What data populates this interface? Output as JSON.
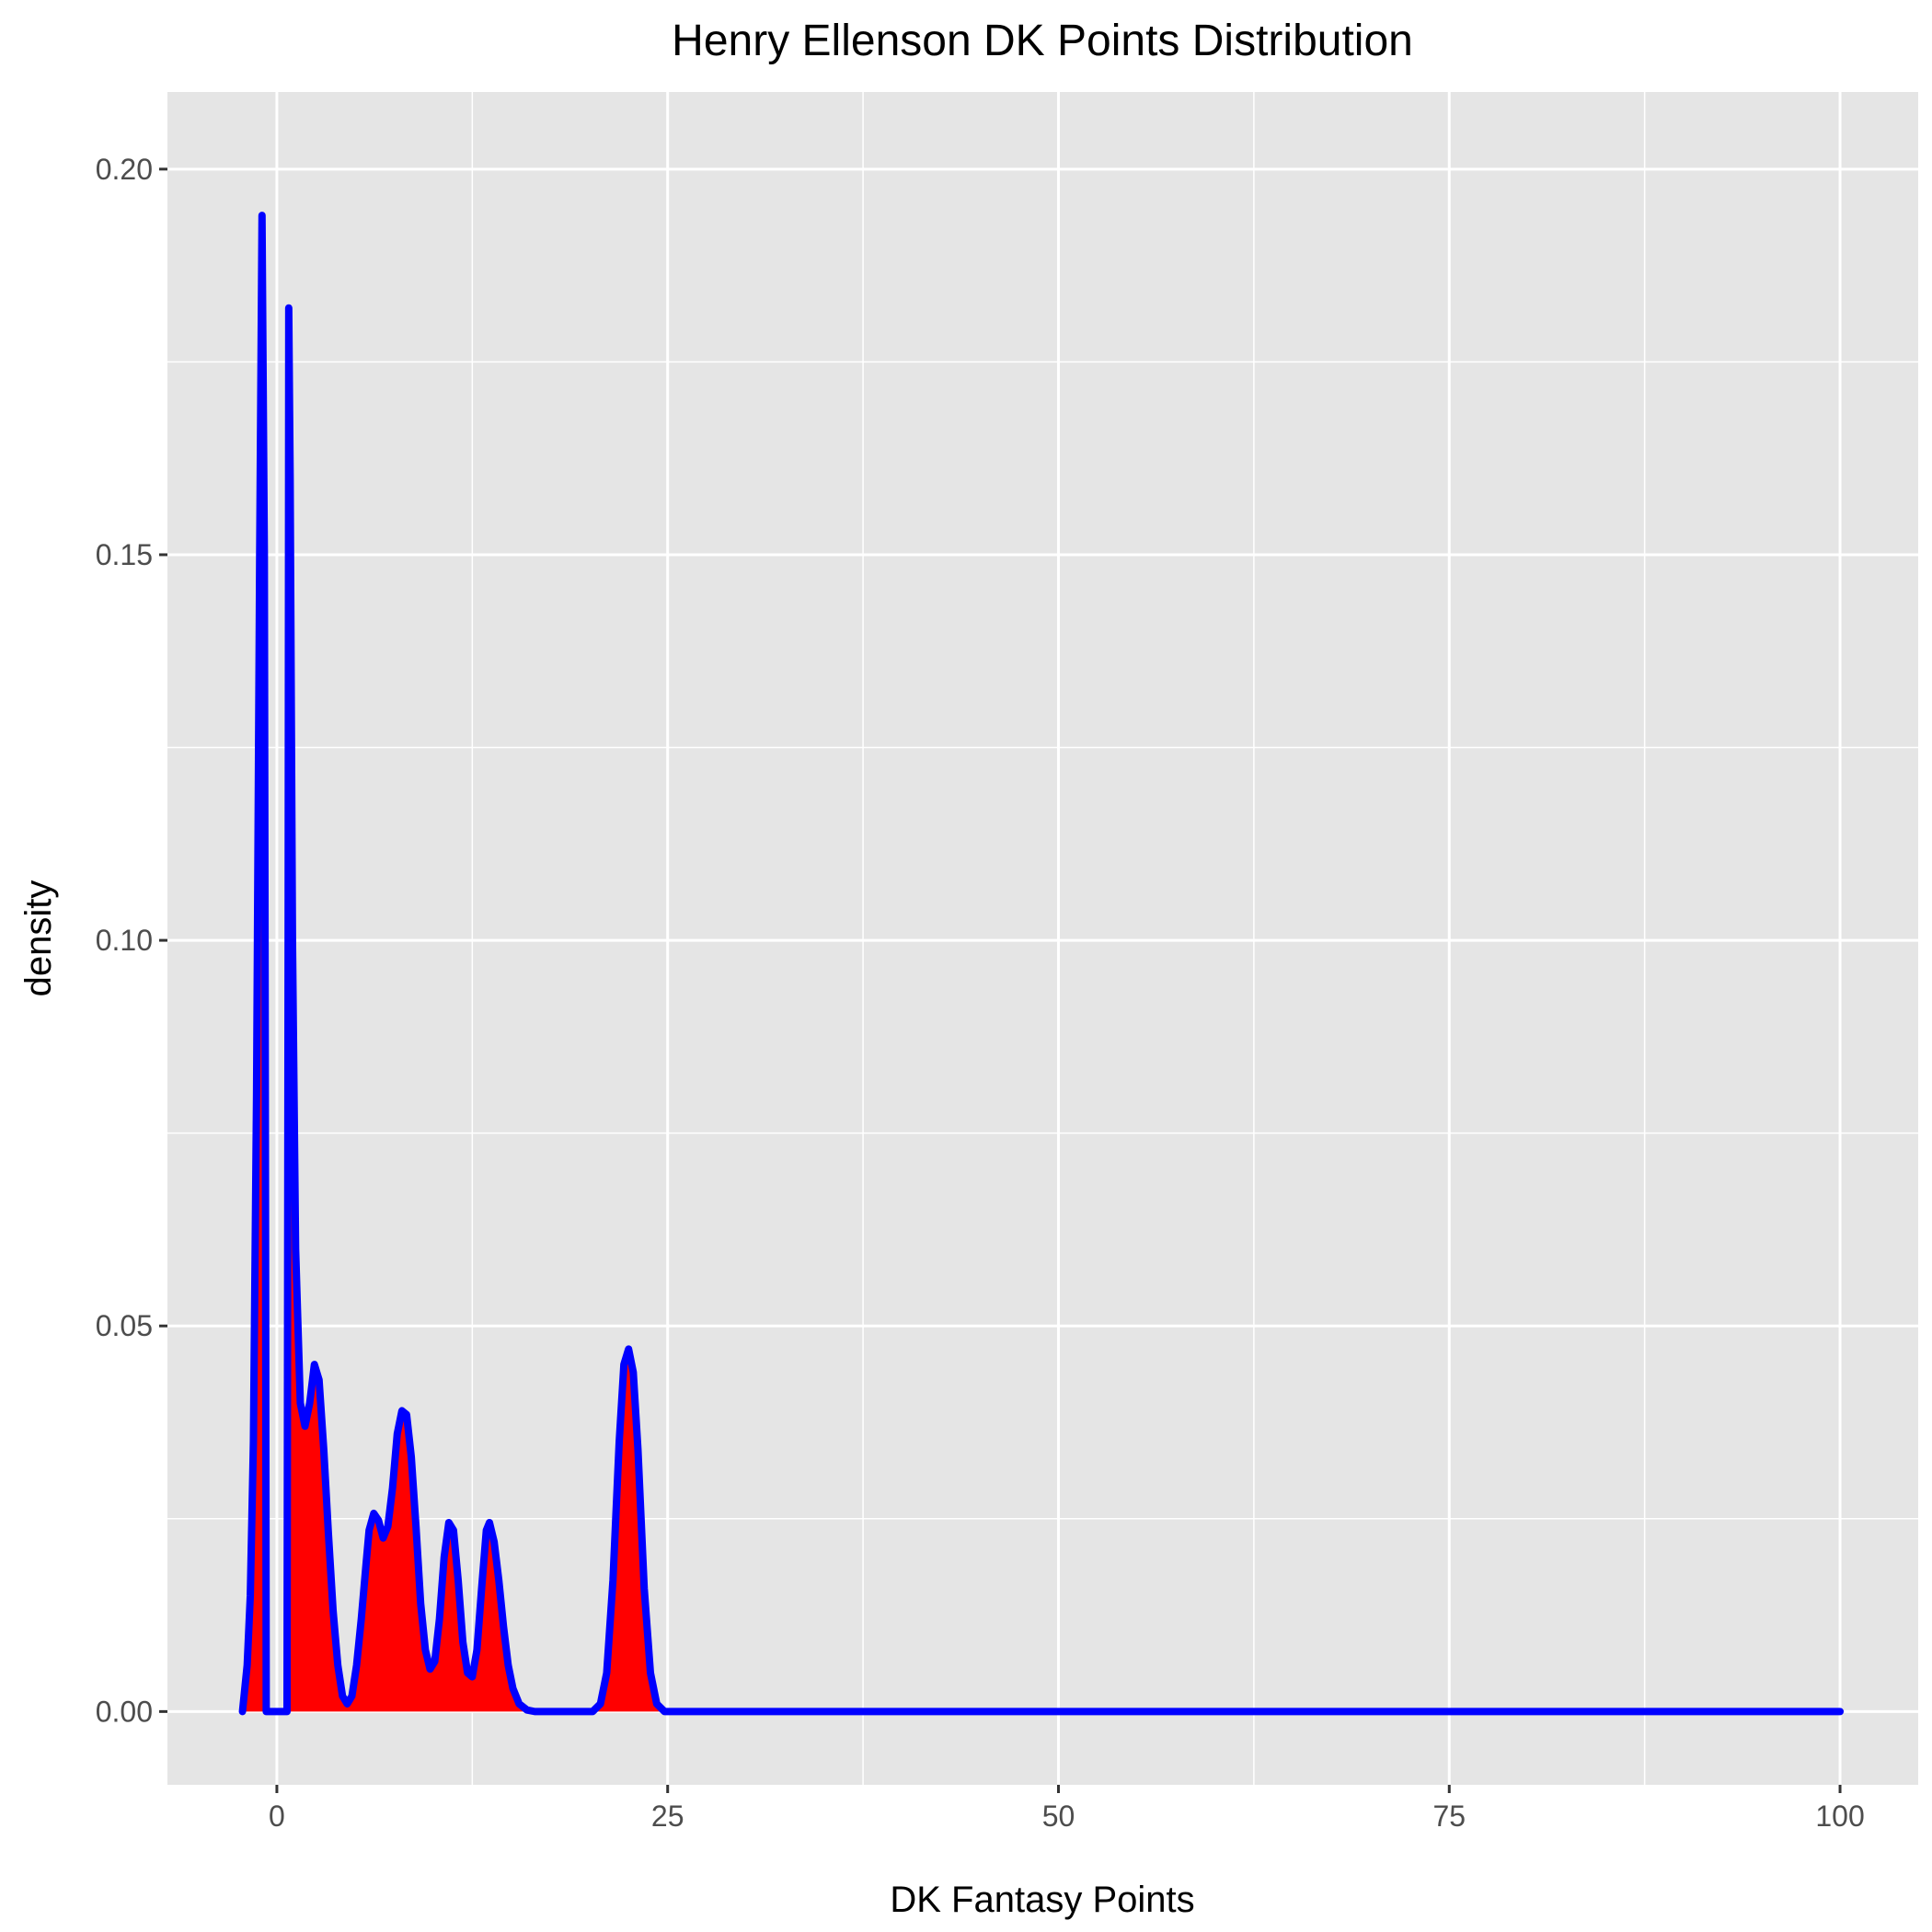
{
  "chart_data": {
    "type": "area",
    "title": "Henry Ellenson DK Points Distribution",
    "xlabel": "DK Fantasy Points",
    "ylabel": "density",
    "xlim": [
      -7,
      105
    ],
    "ylim": [
      -0.0095,
      0.21
    ],
    "x_ticks": [
      0,
      25,
      50,
      75,
      100
    ],
    "x_tick_labels": [
      "0",
      "25",
      "50",
      "75",
      "100"
    ],
    "y_ticks": [
      0.0,
      0.05,
      0.1,
      0.15,
      0.2
    ],
    "y_tick_labels": [
      "0.00",
      "0.05",
      "0.10",
      "0.15",
      "0.20"
    ],
    "grid": true,
    "series": [
      {
        "name": "density",
        "points": [
          [
            -2.2,
            0.0
          ],
          [
            -2.1,
            0.002
          ],
          [
            -1.9,
            0.006
          ],
          [
            -1.7,
            0.015
          ],
          [
            -1.5,
            0.035
          ],
          [
            -1.3,
            0.08
          ],
          [
            -1.1,
            0.15
          ],
          [
            -0.95,
            0.194
          ],
          [
            -0.8,
            0.15
          ],
          [
            -0.72,
            0.06
          ],
          [
            -0.68,
            0.0
          ],
          [
            0.65,
            0.0
          ],
          [
            0.72,
            0.1
          ],
          [
            0.76,
            0.182
          ],
          [
            0.85,
            0.16
          ],
          [
            1.0,
            0.1
          ],
          [
            1.2,
            0.06
          ],
          [
            1.5,
            0.04
          ],
          [
            1.8,
            0.037
          ],
          [
            2.1,
            0.04
          ],
          [
            2.4,
            0.045
          ],
          [
            2.7,
            0.043
          ],
          [
            3.0,
            0.034
          ],
          [
            3.3,
            0.023
          ],
          [
            3.6,
            0.013
          ],
          [
            3.9,
            0.006
          ],
          [
            4.2,
            0.002
          ],
          [
            4.5,
            0.001
          ],
          [
            4.8,
            0.002
          ],
          [
            5.1,
            0.006
          ],
          [
            5.4,
            0.012
          ],
          [
            5.7,
            0.019
          ],
          [
            5.9,
            0.0235
          ],
          [
            6.2,
            0.0257
          ],
          [
            6.5,
            0.0248
          ],
          [
            6.8,
            0.0225
          ],
          [
            7.1,
            0.024
          ],
          [
            7.4,
            0.029
          ],
          [
            7.7,
            0.036
          ],
          [
            8.0,
            0.039
          ],
          [
            8.3,
            0.0385
          ],
          [
            8.6,
            0.033
          ],
          [
            8.9,
            0.024
          ],
          [
            9.2,
            0.014
          ],
          [
            9.5,
            0.008
          ],
          [
            9.8,
            0.0055
          ],
          [
            10.1,
            0.0065
          ],
          [
            10.4,
            0.012
          ],
          [
            10.7,
            0.02
          ],
          [
            11.0,
            0.0245
          ],
          [
            11.3,
            0.0235
          ],
          [
            11.6,
            0.017
          ],
          [
            11.9,
            0.009
          ],
          [
            12.2,
            0.005
          ],
          [
            12.5,
            0.0045
          ],
          [
            12.8,
            0.008
          ],
          [
            13.1,
            0.016
          ],
          [
            13.4,
            0.0235
          ],
          [
            13.6,
            0.0245
          ],
          [
            13.9,
            0.022
          ],
          [
            14.2,
            0.017
          ],
          [
            14.5,
            0.011
          ],
          [
            14.8,
            0.006
          ],
          [
            15.1,
            0.003
          ],
          [
            15.5,
            0.001
          ],
          [
            16.0,
            0.0002
          ],
          [
            16.5,
            0.0
          ],
          [
            20.2,
            0.0
          ],
          [
            20.7,
            0.001
          ],
          [
            21.1,
            0.005
          ],
          [
            21.5,
            0.017
          ],
          [
            21.9,
            0.035
          ],
          [
            22.2,
            0.045
          ],
          [
            22.5,
            0.047
          ],
          [
            22.8,
            0.044
          ],
          [
            23.1,
            0.034
          ],
          [
            23.5,
            0.016
          ],
          [
            23.9,
            0.005
          ],
          [
            24.3,
            0.001
          ],
          [
            24.8,
            0.0
          ],
          [
            100.0,
            0.0
          ]
        ]
      }
    ],
    "colors": {
      "fill": "#ff0000",
      "line": "#0000ff",
      "panel": "#e5e5e5",
      "grid": "#ffffff"
    }
  }
}
